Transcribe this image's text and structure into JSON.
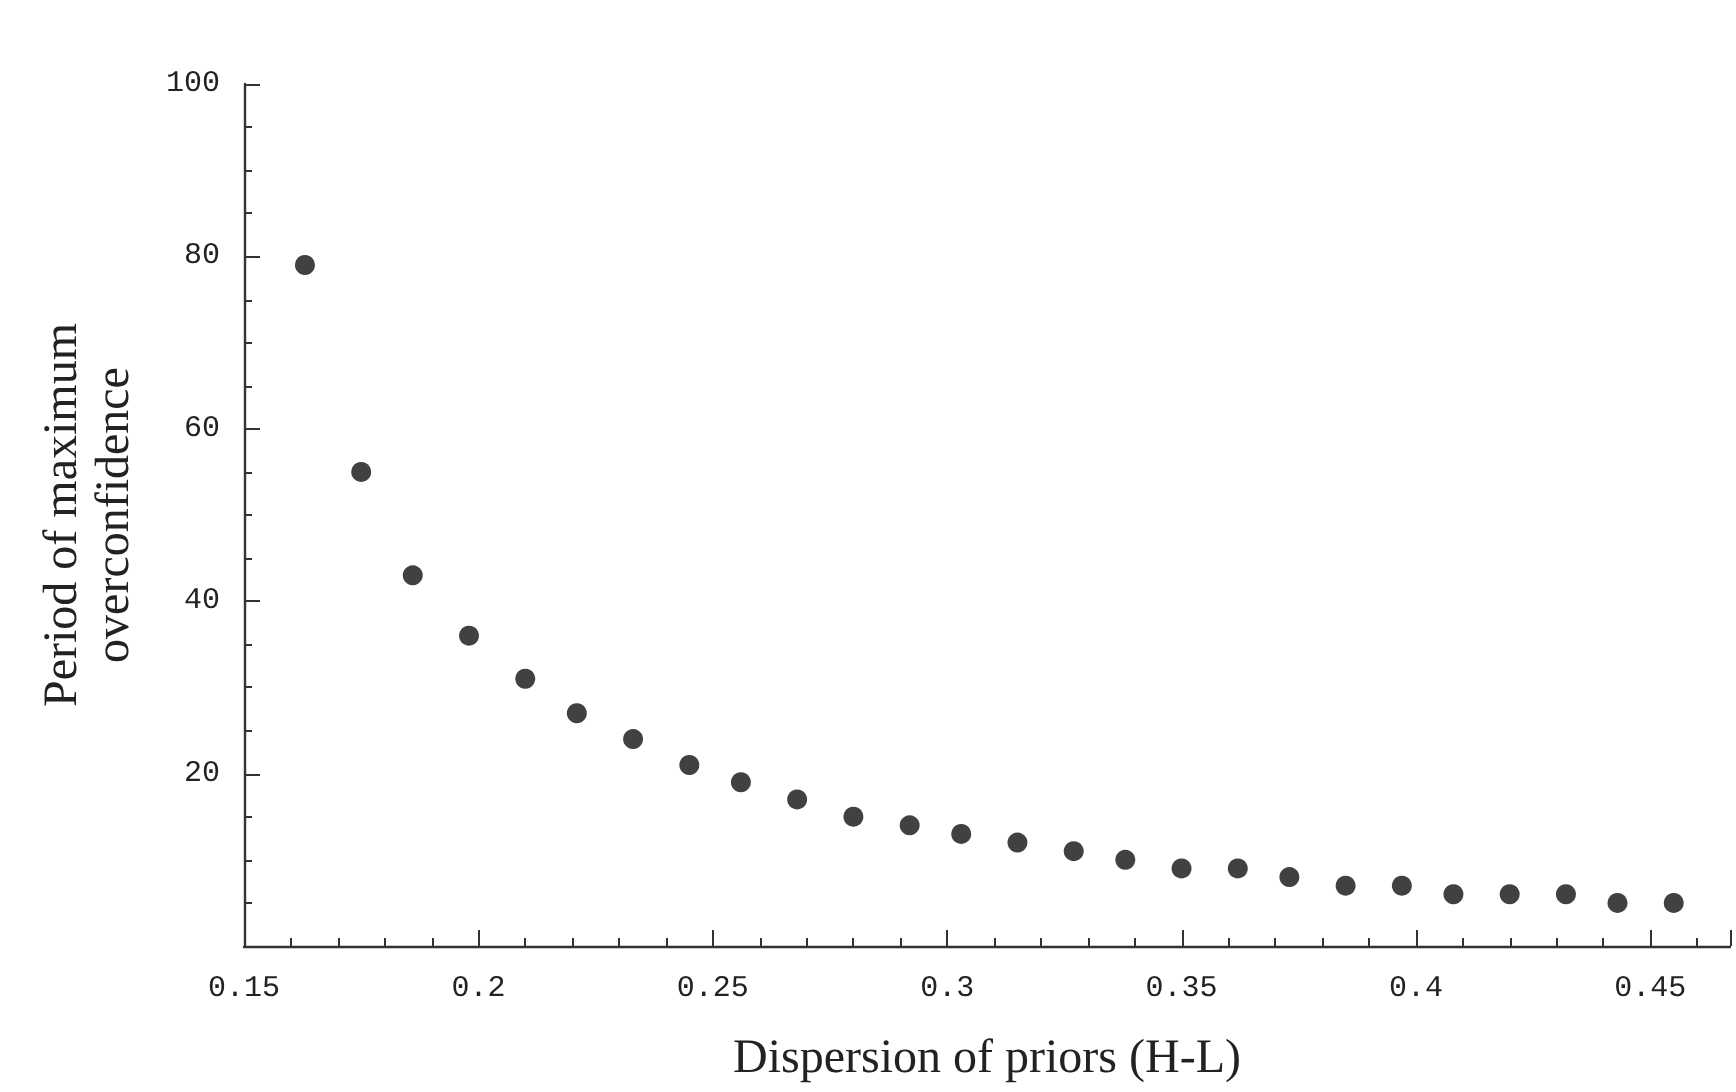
{
  "chart_data": {
    "type": "scatter",
    "xlabel": "Dispersion of priors (H-L)",
    "ylabel": "Period of maximum\noverconfidence",
    "x": [
      0.163,
      0.175,
      0.186,
      0.198,
      0.21,
      0.221,
      0.233,
      0.245,
      0.256,
      0.268,
      0.28,
      0.292,
      0.303,
      0.315,
      0.327,
      0.338,
      0.35,
      0.362,
      0.373,
      0.385,
      0.397,
      0.408,
      0.42,
      0.432,
      0.443,
      0.455
    ],
    "series": [
      {
        "color": "#111111",
        "values": [
          79,
          55,
          43,
          36,
          31,
          27,
          24,
          21,
          19,
          17,
          15,
          14,
          13,
          12,
          11,
          10,
          9,
          9,
          8,
          7,
          7,
          6,
          6,
          6,
          5,
          5
        ]
      }
    ],
    "xlim": [
      0.15,
      0.467
    ],
    "xticks": [
      0.15,
      0.2,
      0.25,
      0.3,
      0.35,
      0.4,
      0.45
    ],
    "ylim": [
      0,
      100
    ],
    "yticks": [
      {
        "value": 0,
        "label": null
      },
      20,
      40,
      60,
      80,
      100
    ],
    "marker": "circle"
  }
}
